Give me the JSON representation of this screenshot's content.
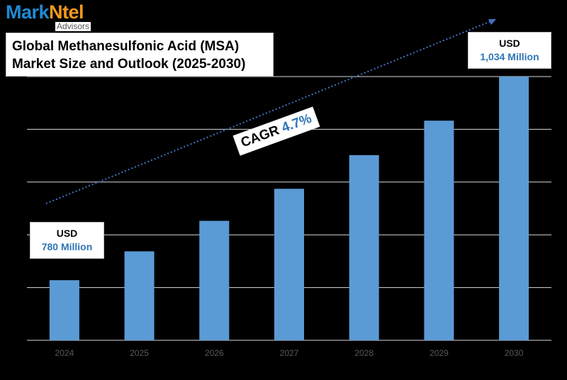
{
  "logo": {
    "brand_part1": "Mark",
    "brand_part2": "Ntel",
    "sub": "Advisors"
  },
  "chart_data": {
    "type": "bar",
    "title_lines": [
      "Global Methanesulfonic Acid (MSA)",
      "Market Size and Outlook (2025-2030)"
    ],
    "categories": [
      "2024",
      "2025",
      "2026",
      "2027",
      "2028",
      "2029",
      "2030"
    ],
    "values": [
      780,
      816,
      854,
      894,
      936,
      979,
      1034
    ],
    "ylim": [
      705,
      1034
    ],
    "grid": true,
    "bar_color": "#5b9bd5",
    "annotations": {
      "start": {
        "currency": "USD",
        "amount": "780 Million"
      },
      "end": {
        "currency": "USD",
        "amount": "1,034 Million"
      },
      "cagr_label": "CAGR",
      "cagr_value": "4.7%"
    }
  }
}
